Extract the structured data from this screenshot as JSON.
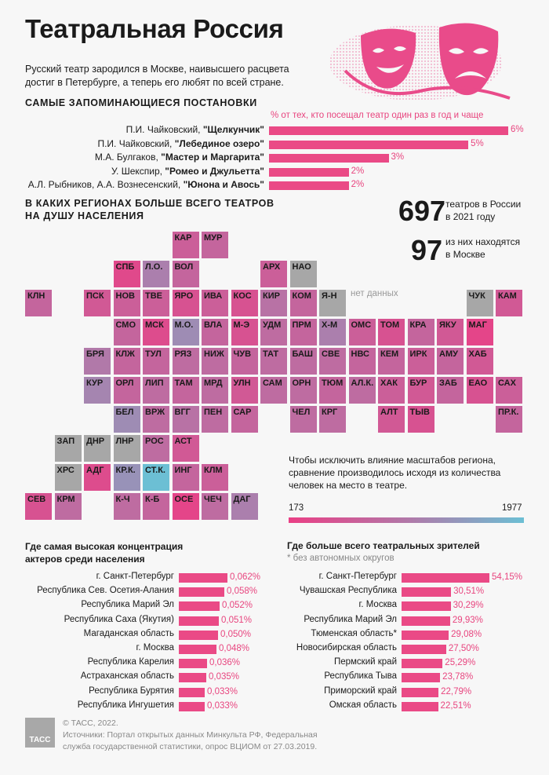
{
  "title": "Театральная Россия",
  "intro": "Русский театр зародился в Москве, наивысшего расцвета достиг в Петербурге, а теперь его любят по всей стране.",
  "productions": {
    "heading": "Самые запоминающиеся постановки",
    "note": "% от тех, кто посещал театр один раз в год и чаще",
    "items": [
      {
        "author": "П.И. Чайковский,",
        "work": "\"Щелкунчик\"",
        "value": "6%"
      },
      {
        "author": "П.И. Чайковский,",
        "work": "\"Лебединое озеро\"",
        "value": "5%"
      },
      {
        "author": "М.А. Булгаков,",
        "work": "\"Мастер и Маргарита\"",
        "value": "3%"
      },
      {
        "author": "У. Шекспир,",
        "work": "\"Ромео и Джульетта\"",
        "value": "2%"
      },
      {
        "author": "А.Л. Рыбников, А.А. Вознесенский,",
        "work": "\"Юнона и Авось\"",
        "value": "2%"
      }
    ]
  },
  "regions_heading_1": "В каких регионах больше всего театров",
  "regions_heading_2": "на душу населения",
  "stat1": {
    "number": "697",
    "text1": "театров в России",
    "text2": "в 2021 году"
  },
  "stat2": {
    "number": "97",
    "text1": "из них находятся",
    "text2": "в Москве"
  },
  "no_data_label": "нет данных",
  "scale_note": "Чтобы исключить влияние масштабов региона, сравнение производилось исходя из количества человек на место в театре.",
  "scale": {
    "min": "173",
    "max": "1977"
  },
  "actors": {
    "heading1": "Где самая высокая концентрация",
    "heading2": "актеров среди населения",
    "items": [
      {
        "label": "г. Санкт-Петербург",
        "value": "0,062%"
      },
      {
        "label": "Республика Сев. Осетия-Алания",
        "value": "0,058%"
      },
      {
        "label": "Республика Марий Эл",
        "value": "0,052%"
      },
      {
        "label": "Республика Саха (Якутия)",
        "value": "0,051%"
      },
      {
        "label": "Магаданская область",
        "value": "0,050%"
      },
      {
        "label": "г. Москва",
        "value": "0,048%"
      },
      {
        "label": "Республика Карелия",
        "value": "0,036%"
      },
      {
        "label": "Астраханская область",
        "value": "0,035%"
      },
      {
        "label": "Республика Бурятия",
        "value": "0,033%"
      },
      {
        "label": "Республика Ингушетия",
        "value": "0,033%"
      }
    ]
  },
  "viewers": {
    "heading": "Где больше всего театральных зрителей",
    "note": "* без автономных округов",
    "items": [
      {
        "label": "г. Санкт-Петербург",
        "value": "54,15%"
      },
      {
        "label": "Чувашская Республика",
        "value": "30,51%"
      },
      {
        "label": "г. Москва",
        "value": "30,29%"
      },
      {
        "label": "Республика Марий Эл",
        "value": "29,93%"
      },
      {
        "label": "Тюменская область*",
        "value": "29,08%"
      },
      {
        "label": "Новосибирская область",
        "value": "27,50%"
      },
      {
        "label": "Пермский край",
        "value": "25,29%"
      },
      {
        "label": "Республика Тыва",
        "value": "23,78%"
      },
      {
        "label": "Приморский край",
        "value": "22,79%"
      },
      {
        "label": "Омская область",
        "value": "22,51%"
      }
    ]
  },
  "footer": {
    "logo": "ТАСС",
    "copyright": "© ТАСС, 2022.",
    "sources1": "Источники: Портал открытых данных Минкульта РФ, Федеральная",
    "sources2": "служба государственной статистики, опрос ВЦИОМ от 27.03.2019."
  },
  "colors": {
    "accent": "#e8457f",
    "nodata": "#a7a7a7",
    "scale_low": "#ea3f85",
    "scale_high": "#6cbfd4"
  },
  "chart_data": [
    {
      "type": "bar",
      "title": "Самые запоминающиеся постановки",
      "categories": [
        "П.И. Чайковский, \"Щелкунчик\"",
        "П.И. Чайковский, \"Лебединое озеро\"",
        "М.А. Булгаков, \"Мастер и Маргарита\"",
        "У. Шекспир, \"Ромео и Джульетта\"",
        "А.Л. Рыбников, А.А. Вознесенский, \"Юнона и Авось\""
      ],
      "values": [
        6,
        5,
        3,
        2,
        2
      ]
    },
    {
      "type": "heatmap",
      "title": "В каких регионах больше всего театров на душу населения",
      "scale": [
        173,
        1977
      ],
      "tiles": [
        {
          "code": "КАР",
          "c": 5,
          "r": 0,
          "v": 0.25
        },
        {
          "code": "МУР",
          "c": 6,
          "r": 0,
          "v": 0.3
        },
        {
          "code": "СПБ",
          "c": 3,
          "r": 1,
          "v": 0.08
        },
        {
          "code": "Л.О.",
          "c": 4,
          "r": 1,
          "v": 0.5
        },
        {
          "code": "ВОЛ",
          "c": 5,
          "r": 1,
          "v": 0.3
        },
        {
          "code": "АРХ",
          "c": 8,
          "r": 1,
          "v": 0.25
        },
        {
          "code": "НАО",
          "c": 9,
          "r": 1,
          "v": null
        },
        {
          "code": "КЛН",
          "c": 0,
          "r": 2,
          "v": 0.3
        },
        {
          "code": "ПСК",
          "c": 2,
          "r": 2,
          "v": 0.2
        },
        {
          "code": "НОВ",
          "c": 3,
          "r": 2,
          "v": 0.25
        },
        {
          "code": "ТВЕ",
          "c": 4,
          "r": 2,
          "v": 0.25
        },
        {
          "code": "ЯРО",
          "c": 5,
          "r": 2,
          "v": 0.15
        },
        {
          "code": "ИВА",
          "c": 6,
          "r": 2,
          "v": 0.25
        },
        {
          "code": "КОС",
          "c": 7,
          "r": 2,
          "v": 0.15
        },
        {
          "code": "КИР",
          "c": 8,
          "r": 2,
          "v": 0.4
        },
        {
          "code": "КОМ",
          "c": 9,
          "r": 2,
          "v": 0.3
        },
        {
          "code": "Я-Н",
          "c": 10,
          "r": 2,
          "v": null
        },
        {
          "code": "ЧУК",
          "c": 15,
          "r": 2,
          "v": null
        },
        {
          "code": "КАМ",
          "c": 16,
          "r": 2,
          "v": 0.2
        },
        {
          "code": "СМО",
          "c": 3,
          "r": 3,
          "v": 0.3
        },
        {
          "code": "МСК",
          "c": 4,
          "r": 3,
          "v": 0.1
        },
        {
          "code": "М.О.",
          "c": 5,
          "r": 3,
          "v": 0.6
        },
        {
          "code": "ВЛА",
          "c": 6,
          "r": 3,
          "v": 0.3
        },
        {
          "code": "М-Э",
          "c": 7,
          "r": 3,
          "v": 0.15
        },
        {
          "code": "УДМ",
          "c": 8,
          "r": 3,
          "v": 0.35
        },
        {
          "code": "ПРМ",
          "c": 9,
          "r": 3,
          "v": 0.3
        },
        {
          "code": "Х-М",
          "c": 10,
          "r": 3,
          "v": 0.5
        },
        {
          "code": "ОМС",
          "c": 11,
          "r": 3,
          "v": 0.25
        },
        {
          "code": "ТОМ",
          "c": 12,
          "r": 3,
          "v": 0.15
        },
        {
          "code": "КРА",
          "c": 13,
          "r": 3,
          "v": 0.3
        },
        {
          "code": "ЯКУ",
          "c": 14,
          "r": 3,
          "v": 0.2
        },
        {
          "code": "МАГ",
          "c": 15,
          "r": 3,
          "v": 0.05
        },
        {
          "code": "БРЯ",
          "c": 2,
          "r": 4,
          "v": 0.45
        },
        {
          "code": "КЛЖ",
          "c": 3,
          "r": 4,
          "v": 0.3
        },
        {
          "code": "ТУЛ",
          "c": 4,
          "r": 4,
          "v": 0.3
        },
        {
          "code": "РЯЗ",
          "c": 5,
          "r": 4,
          "v": 0.35
        },
        {
          "code": "НИЖ",
          "c": 6,
          "r": 4,
          "v": 0.35
        },
        {
          "code": "ЧУВ",
          "c": 7,
          "r": 4,
          "v": 0.3
        },
        {
          "code": "ТАТ",
          "c": 8,
          "r": 4,
          "v": 0.35
        },
        {
          "code": "БАШ",
          "c": 9,
          "r": 4,
          "v": 0.35
        },
        {
          "code": "СВЕ",
          "c": 10,
          "r": 4,
          "v": 0.35
        },
        {
          "code": "НВС",
          "c": 11,
          "r": 4,
          "v": 0.3
        },
        {
          "code": "КЕМ",
          "c": 12,
          "r": 4,
          "v": 0.3
        },
        {
          "code": "ИРК",
          "c": 13,
          "r": 4,
          "v": 0.25
        },
        {
          "code": "АМУ",
          "c": 14,
          "r": 4,
          "v": 0.3
        },
        {
          "code": "ХАБ",
          "c": 15,
          "r": 4,
          "v": 0.2
        },
        {
          "code": "КУР",
          "c": 2,
          "r": 5,
          "v": 0.55
        },
        {
          "code": "ОРЛ",
          "c": 3,
          "r": 5,
          "v": 0.3
        },
        {
          "code": "ЛИП",
          "c": 4,
          "r": 5,
          "v": 0.35
        },
        {
          "code": "ТАМ",
          "c": 5,
          "r": 5,
          "v": 0.3
        },
        {
          "code": "МРД",
          "c": 6,
          "r": 5,
          "v": 0.35
        },
        {
          "code": "УЛН",
          "c": 7,
          "r": 5,
          "v": 0.2
        },
        {
          "code": "САМ",
          "c": 8,
          "r": 5,
          "v": 0.35
        },
        {
          "code": "ОРН",
          "c": 9,
          "r": 5,
          "v": 0.35
        },
        {
          "code": "ТЮМ",
          "c": 10,
          "r": 5,
          "v": 0.3
        },
        {
          "code": "АЛ.К.",
          "c": 11,
          "r": 5,
          "v": 0.35
        },
        {
          "code": "ХАК",
          "c": 12,
          "r": 5,
          "v": 0.25
        },
        {
          "code": "БУР",
          "c": 13,
          "r": 5,
          "v": 0.2
        },
        {
          "code": "ЗАБ",
          "c": 14,
          "r": 5,
          "v": 0.3
        },
        {
          "code": "ЕАО",
          "c": 15,
          "r": 5,
          "v": 0.15
        },
        {
          "code": "САХ",
          "c": 16,
          "r": 5,
          "v": 0.25
        },
        {
          "code": "БЕЛ",
          "c": 3,
          "r": 6,
          "v": 0.6
        },
        {
          "code": "ВРЖ",
          "c": 4,
          "r": 6,
          "v": 0.35
        },
        {
          "code": "ВГГ",
          "c": 5,
          "r": 6,
          "v": 0.4
        },
        {
          "code": "ПЕН",
          "c": 6,
          "r": 6,
          "v": 0.35
        },
        {
          "code": "САР",
          "c": 7,
          "r": 6,
          "v": 0.3
        },
        {
          "code": "ЧЕЛ",
          "c": 9,
          "r": 6,
          "v": 0.35
        },
        {
          "code": "КРГ",
          "c": 10,
          "r": 6,
          "v": 0.35
        },
        {
          "code": "АЛТ",
          "c": 12,
          "r": 6,
          "v": 0.2
        },
        {
          "code": "ТЫВ",
          "c": 13,
          "r": 6,
          "v": 0.15
        },
        {
          "code": "ПР.К.",
          "c": 16,
          "r": 6,
          "v": 0.3
        },
        {
          "code": "ЗАП",
          "c": 1,
          "r": 7,
          "v": null
        },
        {
          "code": "ДНР",
          "c": 2,
          "r": 7,
          "v": null
        },
        {
          "code": "ЛНР",
          "c": 3,
          "r": 7,
          "v": null
        },
        {
          "code": "РОС",
          "c": 4,
          "r": 7,
          "v": 0.35
        },
        {
          "code": "АСТ",
          "c": 5,
          "r": 7,
          "v": 0.2
        },
        {
          "code": "ХРС",
          "c": 1,
          "r": 8,
          "v": null
        },
        {
          "code": "АДГ",
          "c": 2,
          "r": 8,
          "v": 0.1
        },
        {
          "code": "КР.К.",
          "c": 3,
          "r": 8,
          "v": 0.65
        },
        {
          "code": "СТ.К.",
          "c": 4,
          "r": 8,
          "v": 1.0
        },
        {
          "code": "ИНГ",
          "c": 5,
          "r": 8,
          "v": 0.3
        },
        {
          "code": "КЛМ",
          "c": 6,
          "r": 8,
          "v": 0.25
        },
        {
          "code": "СЕВ",
          "c": 0,
          "r": 9,
          "v": 0.15
        },
        {
          "code": "КРМ",
          "c": 1,
          "r": 9,
          "v": 0.35
        },
        {
          "code": "К-Ч",
          "c": 3,
          "r": 9,
          "v": 0.35
        },
        {
          "code": "К-Б",
          "c": 4,
          "r": 9,
          "v": 0.3
        },
        {
          "code": "ОСЕ",
          "c": 5,
          "r": 9,
          "v": 0.05
        },
        {
          "code": "ЧЕЧ",
          "c": 6,
          "r": 9,
          "v": 0.35
        },
        {
          "code": "ДАГ",
          "c": 7,
          "r": 9,
          "v": 0.5
        }
      ]
    },
    {
      "type": "bar",
      "title": "Где самая высокая концентрация актеров среди населения",
      "categories": [
        "г. Санкт-Петербург",
        "Республика Сев. Осетия-Алания",
        "Республика Марий Эл",
        "Республика Саха (Якутия)",
        "Магаданская область",
        "г. Москва",
        "Республика Карелия",
        "Астраханская область",
        "Республика Бурятия",
        "Республика Ингушетия"
      ],
      "values": [
        0.062,
        0.058,
        0.052,
        0.051,
        0.05,
        0.048,
        0.036,
        0.035,
        0.033,
        0.033
      ]
    },
    {
      "type": "bar",
      "title": "Где больше всего театральных зрителей",
      "categories": [
        "г. Санкт-Петербург",
        "Чувашская Республика",
        "г. Москва",
        "Республика Марий Эл",
        "Тюменская область*",
        "Новосибирская область",
        "Пермский край",
        "Республика Тыва",
        "Приморский край",
        "Омская область"
      ],
      "values": [
        54.15,
        30.51,
        30.29,
        29.93,
        29.08,
        27.5,
        25.29,
        23.78,
        22.79,
        22.51
      ]
    }
  ]
}
